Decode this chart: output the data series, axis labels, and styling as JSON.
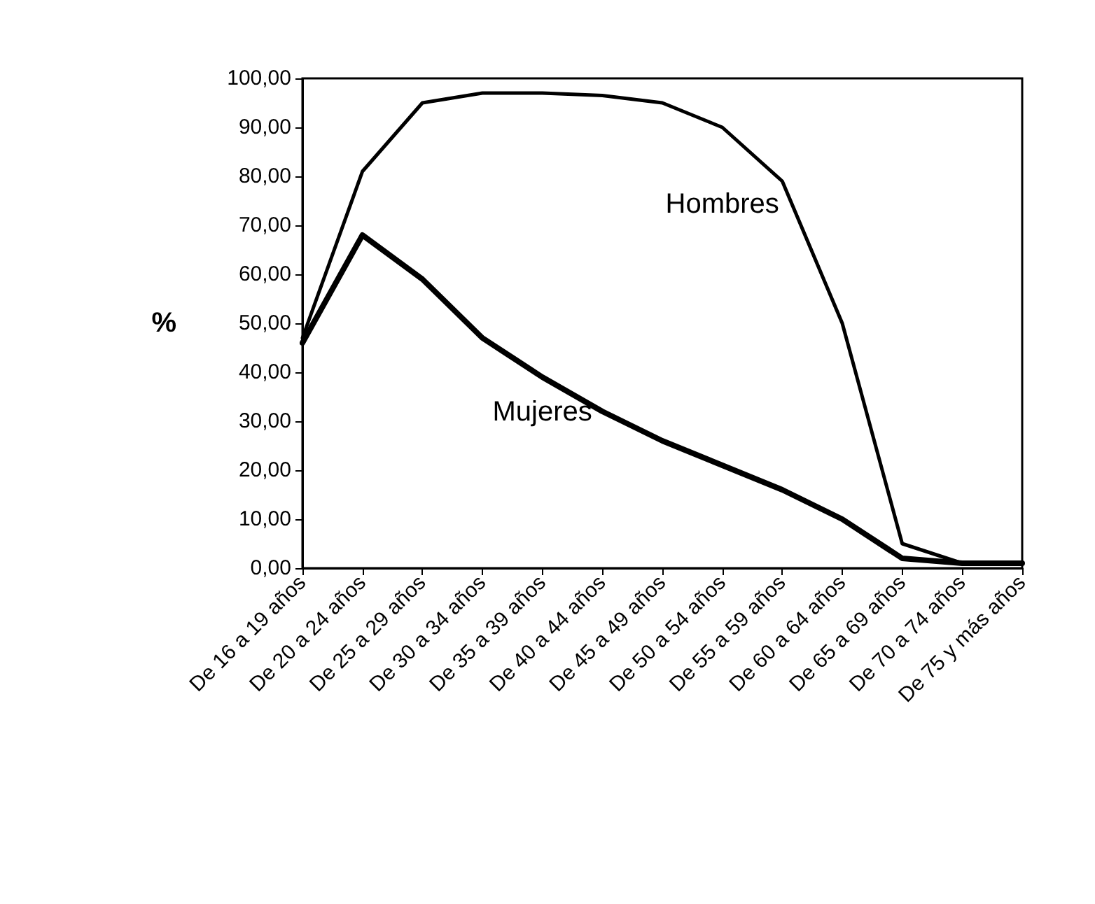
{
  "chart_data": {
    "type": "line",
    "ylabel": "%",
    "categories": [
      "De 16 a 19 años",
      "De 20 a 24 años",
      "De 25 a 29 años",
      "De 30 a 34 años",
      "De 35 a 39 años",
      "De 40 a 44 años",
      "De 45 a 49 años",
      "De 50 a 54 años",
      "De 55 a 59 años",
      "De 60 a 64 años",
      "De 65 a 69 años",
      "De 70 a 74 años",
      "De 75 y más años"
    ],
    "series": [
      {
        "name": "Hombres",
        "color": "#000000",
        "values": [
          47,
          81,
          95,
          97,
          97,
          96.5,
          95,
          90,
          79,
          50,
          5,
          1,
          1
        ]
      },
      {
        "name": "Mujeres",
        "color": "#000000",
        "values": [
          46,
          68,
          59,
          47,
          39,
          32,
          26,
          21,
          16,
          10,
          2,
          1,
          1
        ]
      }
    ],
    "ylim": [
      0,
      100
    ],
    "yticks": [
      {
        "value": 0,
        "label": "0,00"
      },
      {
        "value": 10,
        "label": "10,00"
      },
      {
        "value": 20,
        "label": "20,00"
      },
      {
        "value": 30,
        "label": "30,00"
      },
      {
        "value": 40,
        "label": "40,00"
      },
      {
        "value": 50,
        "label": "50,00"
      },
      {
        "value": 60,
        "label": "60,00"
      },
      {
        "value": 70,
        "label": "70,00"
      },
      {
        "value": 80,
        "label": "80,00"
      },
      {
        "value": 90,
        "label": "90,00"
      },
      {
        "value": 100,
        "label": "100,00"
      }
    ],
    "grid": false,
    "legend": false,
    "marker": "none",
    "line_style": "solid"
  }
}
